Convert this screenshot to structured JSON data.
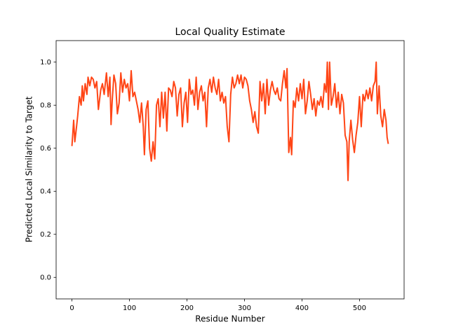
{
  "chart_data": {
    "type": "line",
    "title": "Local Quality Estimate",
    "x_label": "Residue Number",
    "y_label": "Predicted Local Similarity to Target",
    "xlim": [
      -27.5,
      577.5
    ],
    "ylim": [
      -0.1,
      1.1
    ],
    "xticks": [
      0,
      100,
      200,
      300,
      400,
      500
    ],
    "yticks": [
      {
        "value": 0,
        "label": "0.0"
      },
      0.2,
      0.4,
      0.6,
      0.8,
      {
        "value": 1,
        "label": "1.0"
      }
    ],
    "grid": false,
    "series": [
      {
        "color": "#ff4516",
        "x": [
          0,
          3,
          5,
          8,
          10,
          13,
          16,
          18,
          20,
          23,
          26,
          28,
          31,
          34,
          37,
          40,
          43,
          46,
          50,
          53,
          56,
          60,
          63,
          66,
          68,
          70,
          73,
          76,
          79,
          82,
          85,
          88,
          91,
          94,
          97,
          100,
          103,
          106,
          109,
          112,
          115,
          118,
          121,
          124,
          126,
          129,
          132,
          135,
          138,
          141,
          144,
          147,
          150,
          153,
          156,
          159,
          162,
          165,
          168,
          171,
          174,
          177,
          180,
          183,
          186,
          189,
          192,
          195,
          198,
          201,
          204,
          207,
          210,
          213,
          216,
          219,
          222,
          225,
          228,
          231,
          234,
          237,
          240,
          243,
          246,
          249,
          252,
          255,
          258,
          261,
          264,
          267,
          270,
          273,
          276,
          279,
          282,
          285,
          288,
          291,
          294,
          297,
          300,
          303,
          306,
          309,
          312,
          315,
          318,
          321,
          324,
          327,
          330,
          333,
          336,
          339,
          342,
          345,
          348,
          351,
          354,
          357,
          360,
          363,
          366,
          369,
          372,
          374,
          377,
          380,
          382,
          385,
          388,
          391,
          394,
          397,
          400,
          403,
          406,
          409,
          412,
          415,
          418,
          421,
          424,
          427,
          430,
          433,
          436,
          439,
          442,
          444,
          446,
          448,
          451,
          454,
          457,
          460,
          463,
          466,
          469,
          472,
          475,
          478,
          480,
          482,
          485,
          488,
          491,
          494,
          497,
          500,
          503,
          506,
          509,
          512,
          515,
          518,
          521,
          524,
          527,
          529,
          531,
          534,
          537,
          540,
          543,
          546,
          548,
          550
        ],
        "values": [
          0.61,
          0.73,
          0.63,
          0.7,
          0.75,
          0.84,
          0.8,
          0.89,
          0.82,
          0.9,
          0.85,
          0.93,
          0.89,
          0.93,
          0.92,
          0.88,
          0.91,
          0.78,
          0.87,
          0.9,
          0.85,
          0.95,
          0.84,
          0.93,
          0.71,
          0.82,
          0.94,
          0.9,
          0.76,
          0.81,
          0.95,
          0.86,
          0.92,
          0.88,
          0.9,
          0.82,
          0.96,
          0.84,
          0.86,
          0.82,
          0.78,
          0.72,
          0.81,
          0.7,
          0.57,
          0.78,
          0.82,
          0.6,
          0.54,
          0.63,
          0.55,
          0.8,
          0.83,
          0.7,
          0.86,
          0.74,
          0.86,
          0.68,
          0.88,
          0.87,
          0.84,
          0.91,
          0.88,
          0.75,
          0.85,
          0.88,
          0.7,
          0.81,
          0.86,
          0.72,
          0.92,
          0.85,
          0.87,
          0.8,
          0.93,
          0.78,
          0.86,
          0.89,
          0.82,
          0.86,
          0.7,
          0.88,
          0.92,
          0.86,
          0.93,
          0.88,
          0.85,
          0.92,
          0.82,
          0.86,
          0.81,
          0.84,
          0.7,
          0.63,
          0.85,
          0.93,
          0.88,
          0.9,
          0.94,
          0.9,
          0.94,
          0.88,
          0.93,
          0.92,
          0.89,
          0.82,
          0.78,
          0.72,
          0.77,
          0.7,
          0.67,
          0.91,
          0.82,
          0.9,
          0.76,
          0.92,
          0.8,
          0.87,
          0.91,
          0.87,
          0.85,
          0.88,
          0.83,
          0.82,
          0.9,
          0.96,
          0.88,
          0.97,
          0.58,
          0.65,
          0.57,
          0.82,
          0.79,
          0.88,
          0.82,
          0.9,
          0.83,
          0.92,
          0.76,
          0.82,
          0.91,
          0.85,
          0.78,
          0.83,
          0.75,
          0.82,
          0.8,
          0.84,
          0.79,
          0.9,
          0.86,
          1.0,
          0.78,
          1.0,
          0.8,
          0.84,
          0.9,
          0.79,
          0.86,
          0.76,
          0.85,
          0.81,
          0.66,
          0.63,
          0.45,
          0.63,
          0.73,
          0.64,
          0.58,
          0.66,
          0.72,
          0.84,
          0.7,
          0.85,
          0.82,
          0.87,
          0.83,
          0.88,
          0.82,
          0.89,
          0.91,
          1.0,
          0.76,
          0.89,
          0.75,
          0.7,
          0.78,
          0.73,
          0.65,
          0.62
        ]
      }
    ]
  }
}
